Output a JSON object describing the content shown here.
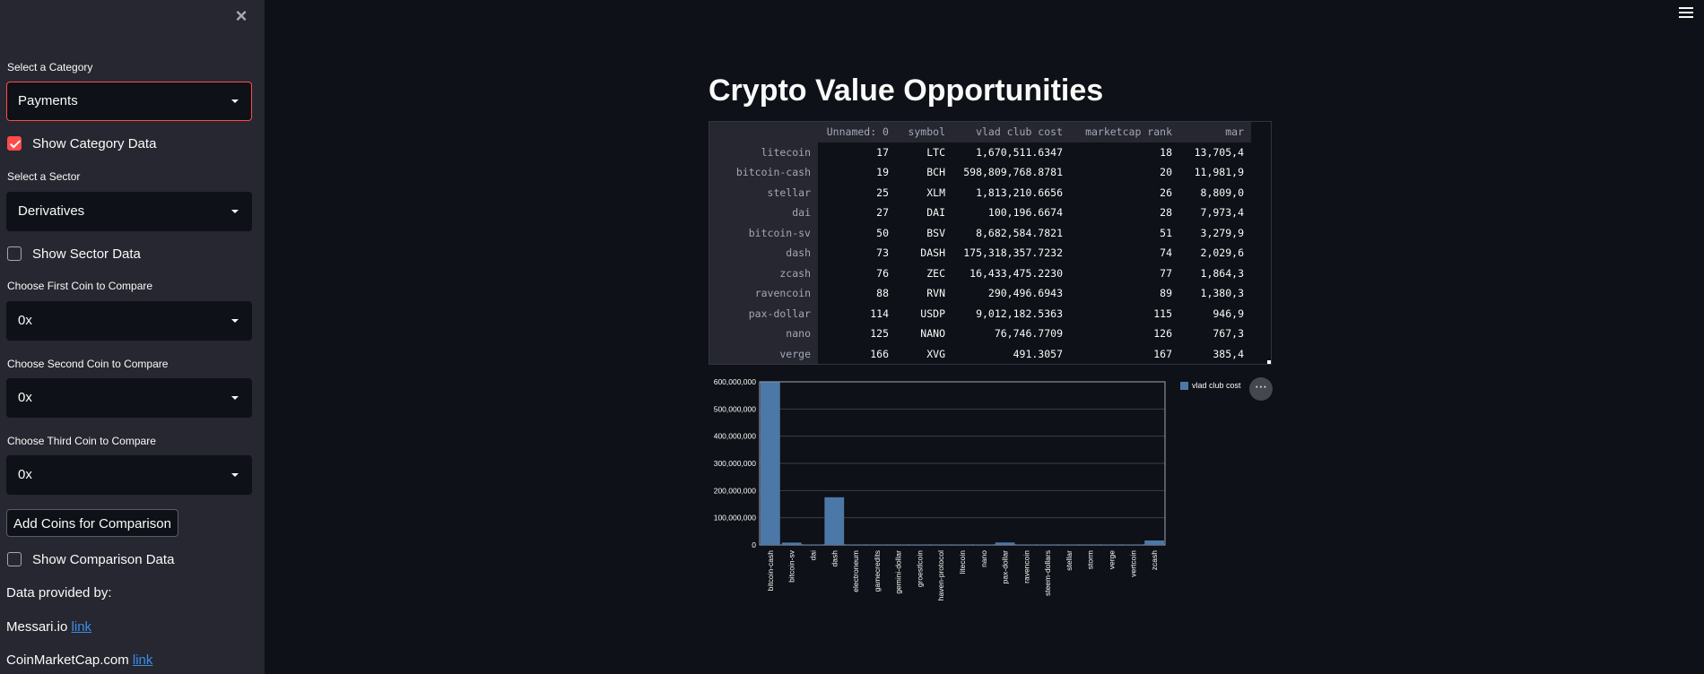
{
  "sidebar": {
    "category_label": "Select a Category",
    "category_value": "Payments",
    "show_category": "Show Category Data",
    "sector_label": "Select a Sector",
    "sector_value": "Derivatives",
    "show_sector": "Show Sector Data",
    "first_label": "Choose First Coin to Compare",
    "first_value": "0x",
    "second_label": "Choose Second Coin to Compare",
    "second_value": "0x",
    "third_label": "Choose Third Coin to Compare",
    "third_value": "0x",
    "add_button": "Add Coins for Comparison",
    "show_comparison": "Show Comparison Data",
    "provided_by": "Data provided by:",
    "messari": "Messari.io",
    "cmc": "CoinMarketCap.com",
    "link_text": "link",
    "show_category_checked": true,
    "show_sector_checked": false,
    "show_comparison_checked": false
  },
  "main": {
    "title": "Crypto Value Opportunities"
  },
  "table": {
    "columns": [
      "Unnamed: 0",
      "symbol",
      "vlad club cost",
      "marketcap rank",
      "mar"
    ],
    "rows": [
      {
        "name": "litecoin",
        "u": "17",
        "symbol": "LTC",
        "cost": "1,670,511.6347",
        "rank": "18",
        "mar": "13,705,4"
      },
      {
        "name": "bitcoin-cash",
        "u": "19",
        "symbol": "BCH",
        "cost": "598,809,768.8781",
        "rank": "20",
        "mar": "11,981,9"
      },
      {
        "name": "stellar",
        "u": "25",
        "symbol": "XLM",
        "cost": "1,813,210.6656",
        "rank": "26",
        "mar": "8,809,0"
      },
      {
        "name": "dai",
        "u": "27",
        "symbol": "DAI",
        "cost": "100,196.6674",
        "rank": "28",
        "mar": "7,973,4"
      },
      {
        "name": "bitcoin-sv",
        "u": "50",
        "symbol": "BSV",
        "cost": "8,682,584.7821",
        "rank": "51",
        "mar": "3,279,9"
      },
      {
        "name": "dash",
        "u": "73",
        "symbol": "DASH",
        "cost": "175,318,357.7232",
        "rank": "74",
        "mar": "2,029,6"
      },
      {
        "name": "zcash",
        "u": "76",
        "symbol": "ZEC",
        "cost": "16,433,475.2230",
        "rank": "77",
        "mar": "1,864,3"
      },
      {
        "name": "ravencoin",
        "u": "88",
        "symbol": "RVN",
        "cost": "290,496.6943",
        "rank": "89",
        "mar": "1,380,3"
      },
      {
        "name": "pax-dollar",
        "u": "114",
        "symbol": "USDP",
        "cost": "9,012,182.5363",
        "rank": "115",
        "mar": "946,9"
      },
      {
        "name": "nano",
        "u": "125",
        "symbol": "NANO",
        "cost": "76,746.7709",
        "rank": "126",
        "mar": "767,3"
      },
      {
        "name": "verge",
        "u": "166",
        "symbol": "XVG",
        "cost": "491.3057",
        "rank": "167",
        "mar": "385,4"
      }
    ]
  },
  "chart_data": {
    "type": "bar",
    "categories": [
      "bitcoin-cash",
      "bitcoin-sv",
      "dai",
      "dash",
      "electroneum",
      "gamecredits",
      "gemini-dollar",
      "groestlcoin",
      "haven-protocol",
      "litecoin",
      "nano",
      "pax-dollar",
      "ravencoin",
      "steem-dollars",
      "stellar",
      "storm",
      "verge",
      "vertcoin",
      "zcash"
    ],
    "series": [
      {
        "name": "vlad club cost",
        "values": [
          598809768.8781,
          8682584.7821,
          100196.6674,
          175318357.7232,
          50000,
          50000,
          50000,
          50000,
          50000,
          1670511.6347,
          76746.7709,
          9012182.5363,
          290496.6943,
          50000,
          1813210.6656,
          50000,
          491.3057,
          50000,
          16433475.223
        ]
      }
    ],
    "yticks": [
      "0",
      "100,000,000",
      "200,000,000",
      "300,000,000",
      "400,000,000",
      "500,000,000",
      "600,000,000"
    ],
    "ylim": [
      0,
      600000000
    ],
    "grid": true,
    "legend": "top-right",
    "bar_color": "#4c78a8"
  }
}
